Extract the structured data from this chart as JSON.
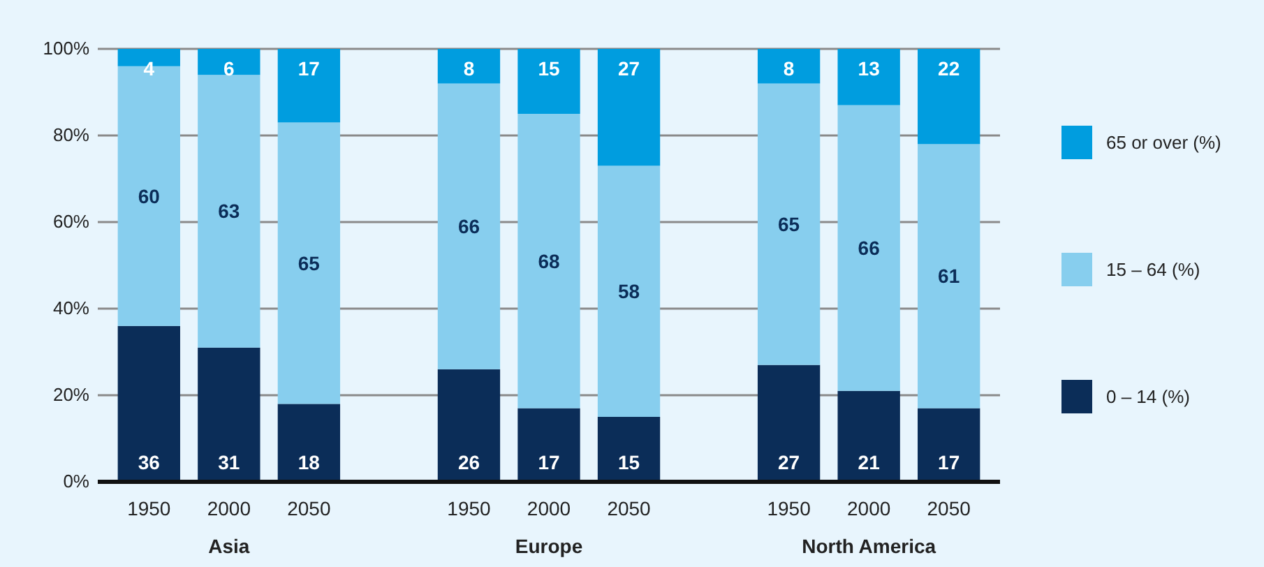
{
  "chart_data": {
    "type": "bar",
    "stacked": true,
    "categories": [
      "1950",
      "2000",
      "2050",
      null,
      "1950",
      "2000",
      "2050",
      null,
      "1950",
      "2000",
      "2050"
    ],
    "series": [
      {
        "name": "0 – 14 (%)",
        "color": "#0b2d58",
        "values": [
          36,
          31,
          18,
          null,
          26,
          17,
          15,
          null,
          27,
          21,
          17
        ]
      },
      {
        "name": "15 – 64 (%)",
        "color": "#87ceee",
        "values": [
          60,
          63,
          65,
          null,
          66,
          68,
          58,
          null,
          65,
          66,
          61
        ]
      },
      {
        "name": "65 or over (%)",
        "color": "#009ddf",
        "values": [
          4,
          6,
          17,
          null,
          8,
          15,
          27,
          null,
          8,
          13,
          22
        ]
      }
    ],
    "ylim": [
      0,
      100
    ],
    "yticks": [
      {
        "value": 0,
        "label": "0%"
      },
      {
        "value": 20,
        "label": "20%"
      },
      {
        "value": 40,
        "label": "40%"
      },
      {
        "value": 60,
        "label": "60%"
      },
      {
        "value": 80,
        "label": "80%"
      },
      {
        "value": 100,
        "label": "100%"
      }
    ],
    "grid": "y",
    "legend": "right",
    "data_labels": true,
    "annotations": [
      "Asia",
      "Europe",
      "North America"
    ]
  }
}
